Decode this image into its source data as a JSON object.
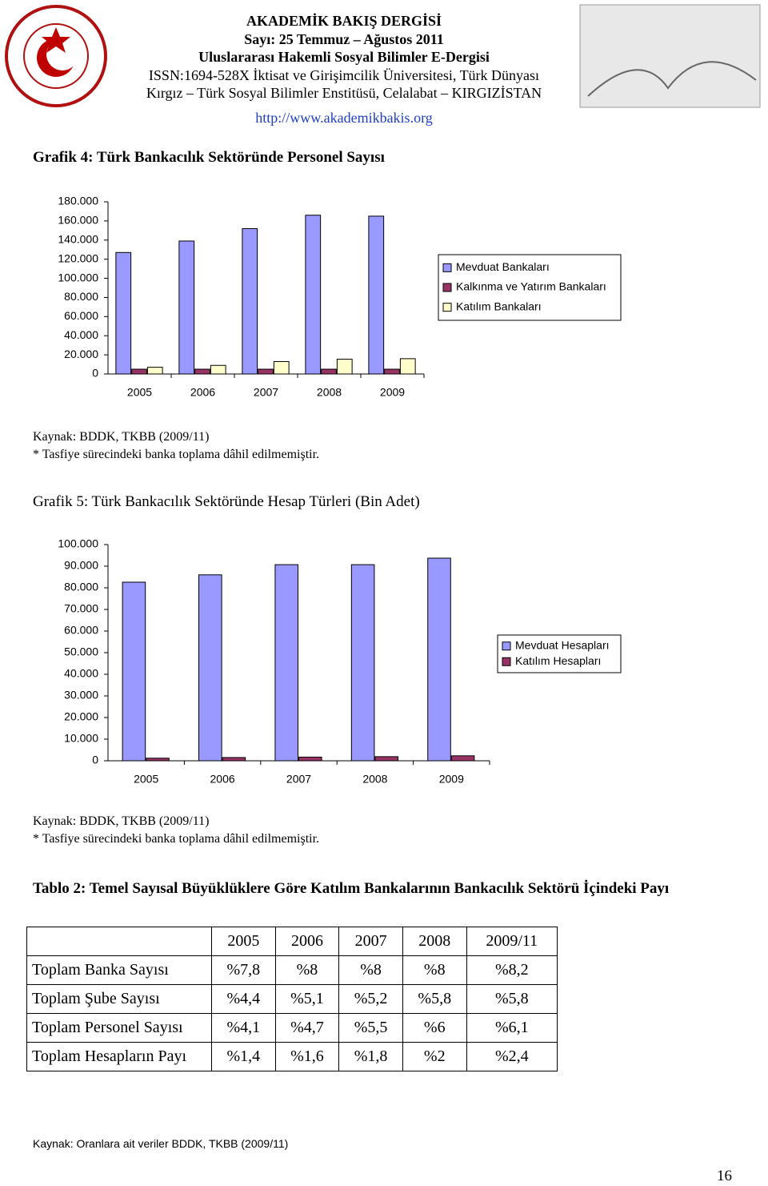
{
  "header": {
    "lines": [
      "AKADEMİK BAKIŞ DERGİSİ",
      "Sayı: 25        Temmuz – Ağustos 2011",
      "Uluslararası Hakemli Sosyal Bilimler E-Dergisi",
      "ISSN:1694-528X İktisat ve Girişimcilik Üniversitesi, Türk Dünyası",
      "Kırgız – Türk Sosyal Bilimler Enstitüsü, Celalabat – KIRGIZİSTAN"
    ],
    "url": "http://www.akademikbakis.org"
  },
  "chart_data": [
    {
      "type": "bar",
      "title": "Grafik 4: Türk Bankacılık Sektöründe Personel Sayısı",
      "categories": [
        "2005",
        "2006",
        "2007",
        "2008",
        "2009"
      ],
      "series": [
        {
          "name": "Mevduat Bankaları",
          "color": "#9999ff",
          "values": [
            127000,
            139000,
            152000,
            166000,
            165000
          ]
        },
        {
          "name": "Kalkınma ve Yatırım Bankaları",
          "color": "#993366",
          "values": [
            5000,
            5000,
            5000,
            5000,
            5000
          ]
        },
        {
          "name": "Katılım Bankaları",
          "color": "#ffffcc",
          "values": [
            7000,
            9000,
            13000,
            15500,
            16000
          ]
        }
      ],
      "ylim": [
        0,
        180000
      ],
      "yticks": [
        0,
        {
          "value": 20000,
          "label": "20.000"
        },
        {
          "value": 40000,
          "label": "40.000"
        },
        {
          "value": 60000,
          "label": "60.000"
        },
        {
          "value": 80000,
          "label": "80.000"
        },
        {
          "value": 100000,
          "label": "100.000"
        },
        {
          "value": 120000,
          "label": "120.000"
        },
        {
          "value": 140000,
          "label": "140.000"
        },
        {
          "value": 160000,
          "label": "160.000"
        },
        {
          "value": 180000,
          "label": "180.000"
        }
      ],
      "legend": "right",
      "source": "Kaynak: BDDK, TKBB (2009/11)",
      "note": "* Tasfiye sürecindeki banka toplama dâhil edilmemiştir."
    },
    {
      "type": "bar",
      "title": "Grafik 5: Türk Bankacılık Sektöründe Hesap Türleri (Bin Adet)",
      "categories": [
        "2005",
        "2006",
        "2007",
        "2008",
        "2009"
      ],
      "series": [
        {
          "name": "Mevduat Hesapları",
          "color": "#9999ff",
          "values": [
            82600,
            86000,
            90700,
            90700,
            93700
          ]
        },
        {
          "name": "Katılım Hesapları",
          "color": "#993366",
          "values": [
            1200,
            1500,
            1700,
            1900,
            2300
          ]
        }
      ],
      "ylim": [
        0,
        100000
      ],
      "yticks": [
        0,
        {
          "value": 10000,
          "label": "10.000"
        },
        {
          "value": 20000,
          "label": "20.000"
        },
        {
          "value": 30000,
          "label": "30.000"
        },
        {
          "value": 40000,
          "label": "40.000"
        },
        {
          "value": 50000,
          "label": "50.000"
        },
        {
          "value": 60000,
          "label": "60.000"
        },
        {
          "value": 70000,
          "label": "70.000"
        },
        {
          "value": 80000,
          "label": "80.000"
        },
        {
          "value": 90000,
          "label": "90.000"
        },
        {
          "value": 100000,
          "label": "100.000"
        }
      ],
      "legend": "right",
      "source": "Kaynak: BDDK, TKBB (2009/11)",
      "note": "* Tasfiye sürecindeki banka toplama dâhil edilmemiştir."
    }
  ],
  "table": {
    "title": "Tablo 2: Temel Sayısal Büyüklüklere Göre Katılım Bankalarının Bankacılık Sektörü İçindeki Payı",
    "columns": [
      "2005",
      "2006",
      "2007",
      "2008",
      "2009/11"
    ],
    "rows": [
      {
        "label": "Toplam Banka Sayısı",
        "values": [
          "%7,8",
          "%8",
          "%8",
          "%8",
          "%8,2"
        ]
      },
      {
        "label": "Toplam Şube Sayısı",
        "values": [
          "%4,4",
          "%5,1",
          "%5,2",
          "%5,8",
          "%5,8"
        ]
      },
      {
        "label": "Toplam Personel Sayısı",
        "values": [
          "%4,1",
          "%4,7",
          "%5,5",
          "%6",
          "%6,1"
        ]
      },
      {
        "label": "Toplam Hesapların Payı",
        "values": [
          "%1,4",
          "%1,6",
          "%1,8",
          "%2",
          "%2,4"
        ]
      }
    ],
    "source": "Kaynak: Oranlara ait veriler BDDK, TKBB (2009/11)"
  },
  "page_number": "16"
}
